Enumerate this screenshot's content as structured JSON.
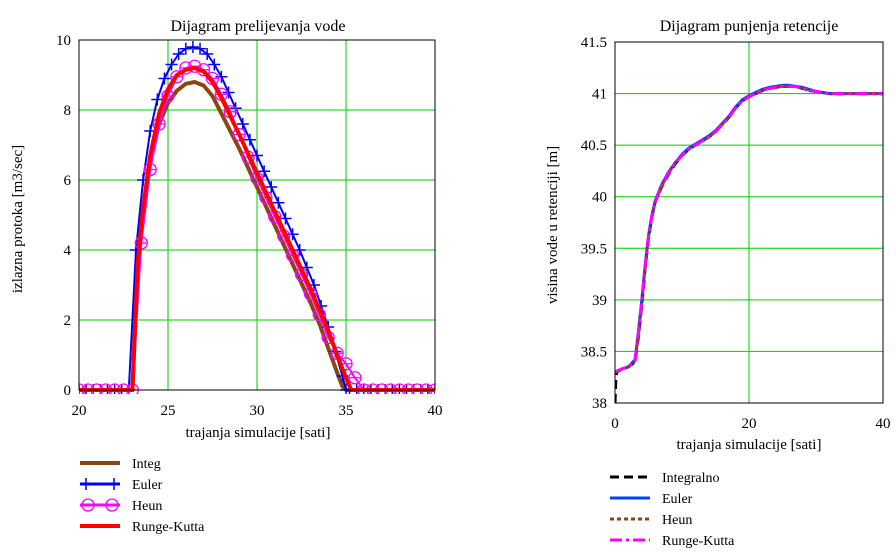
{
  "colors": {
    "grid": "#00cc00",
    "integ_brown": "#8b4513",
    "euler_blue": "#0000ff",
    "heun_magenta": "#ff00ff",
    "rk_red": "#ff0000",
    "integral_black": "#000000",
    "euler2_blue": "#0044ff",
    "heun2_brown": "#8b4513",
    "rk2_magenta": "#ff00ff"
  },
  "chart_data": [
    {
      "type": "line",
      "title": "Dijagram prelijevanja vode",
      "xlabel": "trajanja simulacije [sati]",
      "ylabel": "izlazna protoka [m3/sec]",
      "xlim": [
        20,
        40
      ],
      "ylim": [
        0,
        10
      ],
      "xticks": [
        20,
        25,
        30,
        35,
        40
      ],
      "yticks": [
        0,
        2,
        4,
        6,
        8,
        10
      ],
      "grid": true,
      "legend_position": "bottom-left",
      "series": [
        {
          "name": "Integ",
          "color": "#8b4513",
          "style": "solid-thick",
          "marker": "none",
          "x": [
            20,
            23.0,
            23.3,
            23.6,
            24.0,
            24.5,
            25.0,
            25.5,
            26.0,
            26.5,
            27.0,
            27.5,
            28.0,
            29.0,
            30.0,
            31.0,
            32.0,
            33.0,
            33.5,
            34.0,
            34.5,
            34.8,
            35.0,
            40
          ],
          "y": [
            0,
            0,
            3.5,
            5.0,
            6.5,
            7.6,
            8.2,
            8.55,
            8.75,
            8.8,
            8.7,
            8.4,
            7.9,
            6.9,
            5.8,
            4.7,
            3.6,
            2.5,
            1.9,
            1.2,
            0.5,
            0.1,
            0,
            0
          ]
        },
        {
          "name": "Euler",
          "color": "#0000ff",
          "style": "solid",
          "marker": "plus",
          "x": [
            20,
            20.4,
            20.8,
            21.2,
            21.6,
            22.0,
            22.4,
            22.8,
            23.2,
            23.6,
            24.0,
            24.4,
            24.8,
            25.2,
            25.6,
            26.0,
            26.4,
            26.8,
            27.2,
            27.6,
            28.0,
            28.4,
            28.8,
            29.2,
            29.6,
            30.0,
            30.4,
            30.8,
            31.2,
            31.6,
            32.0,
            32.4,
            32.8,
            33.2,
            33.6,
            34.0,
            34.4,
            34.8,
            35.0,
            35.2,
            35.6,
            36.0,
            36.4,
            36.8,
            37.2,
            37.6,
            38.0,
            38.4,
            38.8,
            39.2,
            39.6,
            40
          ],
          "y": [
            0,
            0,
            0,
            0,
            0,
            0,
            0,
            0,
            4.0,
            6.0,
            7.4,
            8.3,
            8.9,
            9.3,
            9.6,
            9.75,
            9.8,
            9.75,
            9.6,
            9.3,
            8.95,
            8.5,
            8.05,
            7.6,
            7.15,
            6.7,
            6.25,
            5.8,
            5.35,
            4.9,
            4.45,
            4.0,
            3.5,
            3.0,
            2.4,
            1.8,
            1.1,
            0.4,
            0,
            0,
            0,
            0,
            0,
            0,
            0,
            0,
            0,
            0,
            0,
            0,
            0,
            0
          ]
        },
        {
          "name": "Heun",
          "color": "#ff00ff",
          "style": "solid",
          "marker": "circle",
          "x": [
            20,
            20.5,
            21.0,
            21.5,
            22.0,
            22.5,
            23.0,
            23.5,
            24.0,
            24.5,
            25.0,
            25.5,
            26.0,
            26.5,
            27.0,
            27.5,
            28.0,
            28.5,
            29.0,
            29.5,
            30.0,
            30.5,
            31.0,
            31.5,
            32.0,
            32.5,
            33.0,
            33.5,
            34.0,
            34.5,
            35.0,
            35.5,
            36.0,
            36.5,
            37.0,
            37.5,
            38.0,
            38.5,
            39.0,
            39.5,
            40
          ],
          "y": [
            0,
            0,
            0,
            0,
            0,
            0,
            0,
            4.2,
            6.3,
            7.6,
            8.4,
            8.95,
            9.2,
            9.25,
            9.15,
            8.9,
            8.45,
            7.95,
            7.3,
            6.65,
            6.05,
            5.5,
            4.95,
            4.4,
            3.85,
            3.3,
            2.75,
            2.15,
            1.5,
            1.05,
            0.75,
            0.35,
            0,
            0,
            0,
            0,
            0,
            0,
            0,
            0,
            0
          ]
        },
        {
          "name": "Runge-Kutta",
          "color": "#ff0000",
          "style": "solid-thick",
          "marker": "none",
          "x": [
            20,
            23.0,
            23.3,
            23.6,
            24.0,
            24.5,
            25.0,
            25.5,
            26.0,
            26.5,
            27.0,
            27.5,
            28.0,
            29.0,
            30.0,
            31.0,
            32.0,
            33.0,
            33.5,
            34.0,
            34.5,
            35.0,
            35.3,
            40
          ],
          "y": [
            0,
            0,
            3.6,
            5.2,
            6.7,
            7.9,
            8.6,
            9.0,
            9.15,
            9.2,
            9.1,
            8.8,
            8.35,
            7.3,
            6.2,
            5.1,
            4.0,
            2.9,
            2.3,
            1.7,
            1.0,
            0.35,
            0,
            0
          ]
        }
      ]
    },
    {
      "type": "line",
      "title": "Dijagram punjenja retencije",
      "xlabel": "trajanja simulacije [sati]",
      "ylabel": "visina vode u retenciji [m]",
      "xlim": [
        0,
        40
      ],
      "ylim": [
        38,
        41.5
      ],
      "xticks": [
        0,
        20,
        40
      ],
      "yticks": [
        38,
        38.5,
        39,
        39.5,
        40,
        40.5,
        41,
        41.5
      ],
      "grid": true,
      "legend_position": "bottom-left",
      "series": [
        {
          "name": "Integralno",
          "color": "#000000",
          "style": "dashed",
          "x": [
            0,
            0.1,
            0.25,
            1,
            2,
            3,
            3.5,
            4,
            4.5,
            5,
            5.5,
            6,
            7,
            8,
            9,
            10,
            11,
            12,
            13,
            14,
            15,
            16,
            17,
            18,
            19,
            20,
            21,
            22,
            23,
            24,
            25,
            26,
            27,
            28,
            29,
            30,
            31,
            32,
            33,
            34,
            35,
            36,
            37,
            38,
            39,
            40
          ],
          "y": [
            38.0,
            38.2,
            38.3,
            38.33,
            38.35,
            38.4,
            38.65,
            38.95,
            39.3,
            39.6,
            39.8,
            39.95,
            40.1,
            40.22,
            40.32,
            40.4,
            40.46,
            40.5,
            40.54,
            40.58,
            40.63,
            40.7,
            40.77,
            40.86,
            40.93,
            40.97,
            41.0,
            41.03,
            41.05,
            41.06,
            41.07,
            41.07,
            41.07,
            41.05,
            41.03,
            41.02,
            41.01,
            41.0,
            41.0,
            41.0,
            41.0,
            41.0,
            41.0,
            41.0,
            41.0,
            41.0
          ]
        },
        {
          "name": "Euler",
          "color": "#0044ff",
          "style": "solid",
          "x": [
            0,
            1,
            2,
            3,
            3.5,
            4,
            4.5,
            5,
            5.5,
            6,
            7,
            8,
            9,
            10,
            11,
            12,
            13,
            14,
            15,
            16,
            17,
            18,
            19,
            20,
            21,
            22,
            23,
            24,
            25,
            26,
            27,
            28,
            29,
            30,
            31,
            32,
            33,
            34,
            35,
            36,
            37,
            38,
            39,
            40
          ],
          "y": [
            38.3,
            38.33,
            38.35,
            38.42,
            38.7,
            39.0,
            39.33,
            39.62,
            39.82,
            39.96,
            40.12,
            40.24,
            40.33,
            40.41,
            40.47,
            40.51,
            40.55,
            40.59,
            40.64,
            40.71,
            40.78,
            40.87,
            40.94,
            40.98,
            41.01,
            41.04,
            41.06,
            41.07,
            41.08,
            41.08,
            41.07,
            41.06,
            41.04,
            41.02,
            41.01,
            41.0,
            41.0,
            41.0,
            41.0,
            41.0,
            41.0,
            41.0,
            41.0,
            41.0
          ]
        },
        {
          "name": "Heun",
          "color": "#8b4513",
          "style": "dotted",
          "x": [
            0,
            1,
            2,
            3,
            3.5,
            4,
            4.5,
            5,
            5.5,
            6,
            7,
            8,
            9,
            10,
            11,
            12,
            13,
            14,
            15,
            16,
            17,
            18,
            19,
            20,
            21,
            22,
            23,
            24,
            25,
            26,
            27,
            28,
            29,
            30,
            31,
            32,
            33,
            34,
            35,
            36,
            37,
            38,
            39,
            40
          ],
          "y": [
            38.3,
            38.33,
            38.35,
            38.41,
            38.68,
            38.98,
            39.32,
            39.61,
            39.81,
            39.95,
            40.11,
            40.23,
            40.33,
            40.4,
            40.46,
            40.5,
            40.54,
            40.58,
            40.63,
            40.7,
            40.77,
            40.86,
            40.93,
            40.97,
            41.0,
            41.03,
            41.05,
            41.06,
            41.07,
            41.07,
            41.07,
            41.05,
            41.03,
            41.02,
            41.01,
            41.0,
            41.0,
            41.0,
            41.0,
            41.0,
            41.0,
            41.0,
            41.0,
            41.0
          ]
        },
        {
          "name": "Runge-Kutta",
          "color": "#ff00ff",
          "style": "dashdot",
          "x": [
            0,
            1,
            2,
            3,
            3.5,
            4,
            4.5,
            5,
            5.5,
            6,
            7,
            8,
            9,
            10,
            11,
            12,
            13,
            14,
            15,
            16,
            17,
            18,
            19,
            20,
            21,
            22,
            23,
            24,
            25,
            26,
            27,
            28,
            29,
            30,
            31,
            32,
            33,
            34,
            35,
            36,
            37,
            38,
            39,
            40
          ],
          "y": [
            38.3,
            38.33,
            38.35,
            38.41,
            38.68,
            38.98,
            39.32,
            39.61,
            39.81,
            39.95,
            40.11,
            40.23,
            40.33,
            40.4,
            40.46,
            40.5,
            40.54,
            40.58,
            40.63,
            40.7,
            40.77,
            40.86,
            40.93,
            40.97,
            41.0,
            41.03,
            41.05,
            41.06,
            41.07,
            41.07,
            41.07,
            41.05,
            41.03,
            41.02,
            41.01,
            41.0,
            41.0,
            41.0,
            41.0,
            41.0,
            41.0,
            41.0,
            41.0,
            41.0
          ]
        }
      ]
    }
  ]
}
